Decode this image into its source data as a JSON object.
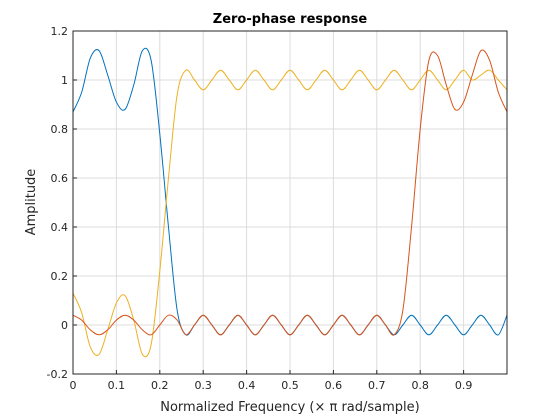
{
  "chart_data": {
    "type": "line",
    "title": "Zero-phase response",
    "xlabel": "Normalized Frequency (× π rad/sample)",
    "ylabel": "Amplitude",
    "xlim": [
      0,
      1
    ],
    "ylim": [
      -0.2,
      1.2
    ],
    "xticks": [
      0,
      0.1,
      0.2,
      0.3,
      0.4,
      0.5,
      0.6,
      0.7,
      0.8,
      0.9
    ],
    "xtick_labels": [
      "0",
      "0.1",
      "0.2",
      "0.3",
      "0.4",
      "0.5",
      "0.6",
      "0.7",
      "0.8",
      "0.9"
    ],
    "yticks": [
      -0.2,
      0,
      0.2,
      0.4,
      0.6,
      0.8,
      1,
      1.2
    ],
    "ytick_labels": [
      "-0.2",
      "0",
      "0.2",
      "0.4",
      "0.6",
      "0.8",
      "1",
      "1.2"
    ],
    "grid": true,
    "series": [
      {
        "color": "#0072bd",
        "x": [
          0,
          0.02,
          0.04,
          0.06,
          0.08,
          0.1,
          0.12,
          0.14,
          0.16,
          0.18,
          0.2,
          0.22,
          0.24,
          0.26,
          0.28,
          0.3,
          0.32,
          0.34,
          0.36,
          0.38,
          0.4,
          0.42,
          0.44,
          0.46,
          0.48,
          0.5,
          0.52,
          0.54,
          0.56,
          0.58,
          0.6,
          0.62,
          0.64,
          0.66,
          0.68,
          0.7,
          0.72,
          0.74,
          0.76,
          0.78,
          0.8,
          0.82,
          0.84,
          0.86,
          0.88,
          0.9,
          0.92,
          0.94,
          0.96,
          0.98,
          1.0
        ],
        "y": [
          0.87,
          0.95,
          1.09,
          1.12,
          1.02,
          0.91,
          0.88,
          0.98,
          1.12,
          1.08,
          0.78,
          0.4,
          0.06,
          -0.04,
          0.0,
          0.04,
          0.0,
          -0.04,
          0.0,
          0.04,
          0.0,
          -0.04,
          0.0,
          0.04,
          0.0,
          -0.04,
          0.0,
          0.04,
          0.0,
          -0.04,
          0.0,
          0.04,
          0.0,
          -0.04,
          0.0,
          0.04,
          0.0,
          -0.04,
          0.0,
          0.04,
          0.0,
          -0.04,
          0.0,
          0.04,
          0.0,
          -0.04,
          0.0,
          0.04,
          0.0,
          -0.04,
          0.04
        ]
      },
      {
        "color": "#edb120",
        "x": [
          0,
          0.02,
          0.04,
          0.06,
          0.08,
          0.1,
          0.12,
          0.14,
          0.16,
          0.18,
          0.2,
          0.22,
          0.24,
          0.26,
          0.28,
          0.3,
          0.32,
          0.34,
          0.36,
          0.38,
          0.4,
          0.42,
          0.44,
          0.46,
          0.48,
          0.5,
          0.52,
          0.54,
          0.56,
          0.58,
          0.6,
          0.62,
          0.64,
          0.66,
          0.68,
          0.7,
          0.72,
          0.74,
          0.76,
          0.78,
          0.8,
          0.82,
          0.84,
          0.86,
          0.88,
          0.9,
          0.92,
          0.94,
          0.96,
          0.98,
          1.0
        ],
        "y": [
          0.13,
          0.05,
          -0.09,
          -0.12,
          -0.02,
          0.09,
          0.12,
          0.02,
          -0.12,
          -0.08,
          0.22,
          0.6,
          0.94,
          1.04,
          1.0,
          0.96,
          1.0,
          1.04,
          1.0,
          0.96,
          1.0,
          1.04,
          1.0,
          0.96,
          1.0,
          1.04,
          1.0,
          0.96,
          1.0,
          1.04,
          1.0,
          0.96,
          1.0,
          1.04,
          1.0,
          0.96,
          1.0,
          1.04,
          1.0,
          0.96,
          1.0,
          1.04,
          1.0,
          0.96,
          1.0,
          1.04,
          1.0,
          1.02,
          1.04,
          1.0,
          0.96
        ]
      },
      {
        "color": "#d95319",
        "x": [
          0,
          0.02,
          0.04,
          0.06,
          0.08,
          0.1,
          0.12,
          0.14,
          0.16,
          0.18,
          0.2,
          0.22,
          0.24,
          0.26,
          0.28,
          0.3,
          0.32,
          0.34,
          0.36,
          0.38,
          0.4,
          0.42,
          0.44,
          0.46,
          0.48,
          0.5,
          0.52,
          0.54,
          0.56,
          0.58,
          0.6,
          0.62,
          0.64,
          0.66,
          0.68,
          0.7,
          0.72,
          0.74,
          0.76,
          0.78,
          0.8,
          0.82,
          0.84,
          0.86,
          0.88,
          0.9,
          0.92,
          0.94,
          0.96,
          0.98,
          1.0
        ],
        "y": [
          0.04,
          0.02,
          -0.02,
          -0.04,
          -0.02,
          0.02,
          0.04,
          0.02,
          -0.02,
          -0.04,
          0.0,
          0.04,
          0.02,
          -0.04,
          0.0,
          0.04,
          0.0,
          -0.04,
          0.0,
          0.04,
          0.0,
          -0.04,
          0.0,
          0.04,
          0.0,
          -0.04,
          0.0,
          0.04,
          0.0,
          -0.04,
          0.0,
          0.04,
          0.0,
          -0.04,
          0.0,
          0.04,
          0.0,
          -0.04,
          0.06,
          0.4,
          0.8,
          1.08,
          1.1,
          0.98,
          0.88,
          0.91,
          1.02,
          1.12,
          1.08,
          0.95,
          0.87
        ]
      }
    ]
  }
}
